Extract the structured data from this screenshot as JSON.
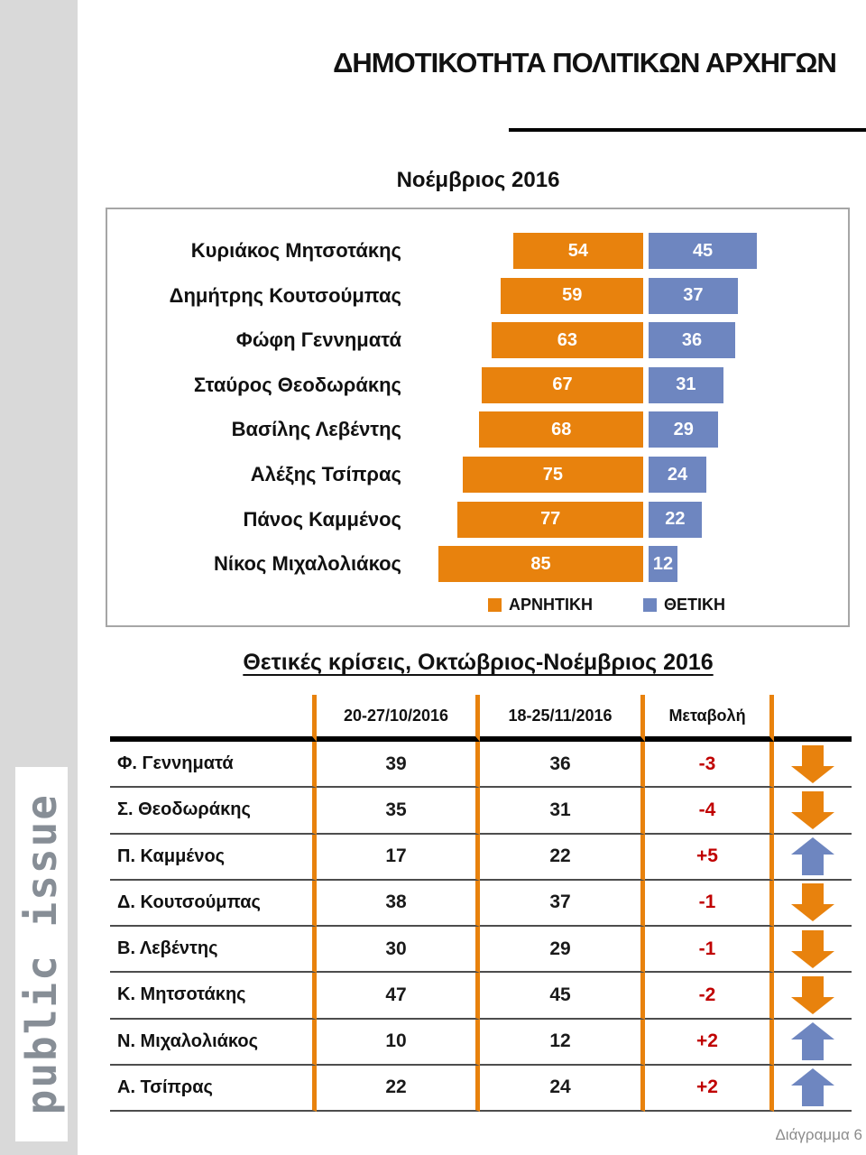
{
  "page": {
    "title": "ΔΗΜΟΤΙΚΟΤΗΤΑ ΠΟΛΙΤΙΚΩΝ ΑΡΧΗΓΩΝ",
    "watermark": "public issue",
    "footer": "Διάγραμμα 6"
  },
  "colors": {
    "negative": "#e8820d",
    "positive": "#6e86c0",
    "change_text": "#c00000"
  },
  "chart_data": [
    {
      "type": "bar",
      "orientation": "horizontal-diverging",
      "title": "Νοέμβριος 2016",
      "categories": [
        "Κυριάκος Μητσοτάκης",
        "Δημήτρης Κουτσούμπας",
        "Φώφη Γεννηματά",
        "Σταύρος Θεοδωράκης",
        "Βασίλης Λεβέντης",
        "Αλέξης Τσίπρας",
        "Πάνος Καμμένος",
        "Νίκος Μιχαλολιάκος"
      ],
      "series": [
        {
          "name": "ΑΡΝΗΤΙΚΗ",
          "color": "#e8820d",
          "values": [
            54,
            59,
            63,
            67,
            68,
            75,
            77,
            85
          ]
        },
        {
          "name": "ΘΕΤΙΚΗ",
          "color": "#6e86c0",
          "values": [
            45,
            37,
            36,
            31,
            29,
            24,
            22,
            12
          ]
        }
      ],
      "legend_position": "bottom",
      "value_labels": "inside-white"
    },
    {
      "type": "table",
      "title": "Θετικές κρίσεις, Οκτώβριος-Νοέμβριος 2016",
      "columns": [
        "",
        "20-27/10/2016",
        "18-25/11/2016",
        "Μεταβολή",
        ""
      ],
      "rows": [
        {
          "name": "Φ. Γεννηματά",
          "oct": "39",
          "nov": "36",
          "change": "-3",
          "direction": "down"
        },
        {
          "name": "Σ. Θεοδωράκης",
          "oct": "35",
          "nov": "31",
          "change": "-4",
          "direction": "down"
        },
        {
          "name": "Π. Καμμένος",
          "oct": "17",
          "nov": "22",
          "change": "+5",
          "direction": "up"
        },
        {
          "name": "Δ. Κουτσούμπας",
          "oct": "38",
          "nov": "37",
          "change": "-1",
          "direction": "down"
        },
        {
          "name": "Β. Λεβέντης",
          "oct": "30",
          "nov": "29",
          "change": "-1",
          "direction": "down"
        },
        {
          "name": "Κ. Μητσοτάκης",
          "oct": "47",
          "nov": "45",
          "change": "-2",
          "direction": "down"
        },
        {
          "name": "Ν. Μιχαλολιάκος",
          "oct": "10",
          "nov": "12",
          "change": "+2",
          "direction": "up"
        },
        {
          "name": "Α. Τσίπρας",
          "oct": "22",
          "nov": "24",
          "change": "+2",
          "direction": "up"
        }
      ]
    }
  ]
}
